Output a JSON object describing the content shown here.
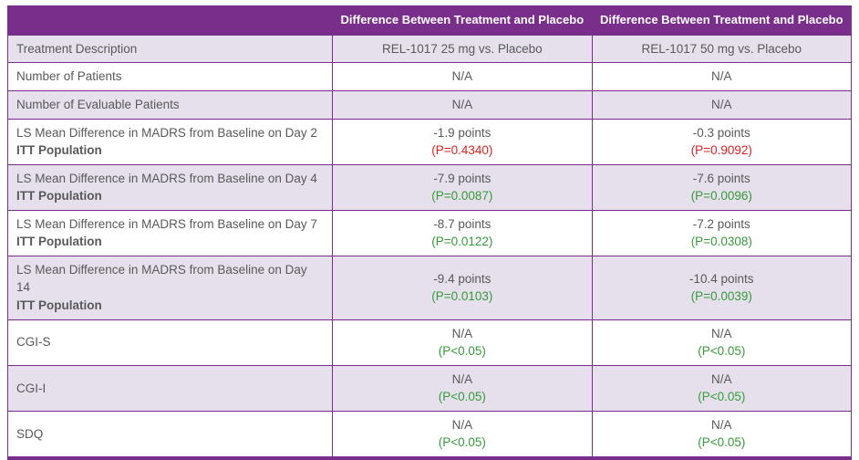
{
  "colors": {
    "purple": "#7a2e8c",
    "row_alt": "#e6e0ed",
    "text": "#595959",
    "red": "#e21f1f",
    "green": "#349c38",
    "white": "#ffffff"
  },
  "header": {
    "col1": "",
    "col2": "Difference Between Treatment and Placebo",
    "col3": "Difference Between Treatment and Placebo"
  },
  "rows": [
    {
      "label": "Treatment Description",
      "sublabel": "",
      "p_color": "",
      "col1": {
        "value": "REL-1017 25 mg vs. Placebo",
        "p": ""
      },
      "col2": {
        "value": "REL-1017 50 mg vs. Placebo",
        "p": ""
      }
    },
    {
      "label": "Number of Patients",
      "sublabel": "",
      "p_color": "",
      "col1": {
        "value": "N/A",
        "p": ""
      },
      "col2": {
        "value": "N/A",
        "p": ""
      }
    },
    {
      "label": "Number of Evaluable Patients",
      "sublabel": "",
      "p_color": "",
      "col1": {
        "value": "N/A",
        "p": ""
      },
      "col2": {
        "value": "N/A",
        "p": ""
      }
    },
    {
      "label": "LS Mean Difference in MADRS from Baseline on Day 2",
      "sublabel": "ITT Population",
      "p_color": "red",
      "col1": {
        "value": "-1.9 points",
        "p": "(P=0.4340)"
      },
      "col2": {
        "value": "-0.3 points",
        "p": "(P=0.9092)"
      }
    },
    {
      "label": "LS Mean Difference in MADRS from Baseline on Day 4",
      "sublabel": "ITT Population",
      "p_color": "green",
      "col1": {
        "value": "-7.9 points",
        "p": "(P=0.0087)"
      },
      "col2": {
        "value": "-7.6 points",
        "p": "(P=0.0096)"
      }
    },
    {
      "label": "LS Mean Difference in MADRS from Baseline on Day 7",
      "sublabel": "ITT Population",
      "p_color": "green",
      "col1": {
        "value": "-8.7 points",
        "p": "(P=0.0122)"
      },
      "col2": {
        "value": "-7.2 points",
        "p": "(P=0.0308)"
      }
    },
    {
      "label": "LS Mean Difference in MADRS from Baseline on Day 14",
      "sublabel": "ITT Population",
      "p_color": "green",
      "col1": {
        "value": "-9.4 points",
        "p": "(P=0.0103)"
      },
      "col2": {
        "value": "-10.4 points",
        "p": "(P=0.0039)"
      }
    },
    {
      "label": "CGI-S",
      "sublabel": "",
      "p_color": "green",
      "col1": {
        "value": "N/A",
        "p": "(P<0.05)"
      },
      "col2": {
        "value": "N/A",
        "p": "(P<0.05)"
      }
    },
    {
      "label": "CGI-I",
      "sublabel": "",
      "p_color": "green",
      "col1": {
        "value": "N/A",
        "p": "(P<0.05)"
      },
      "col2": {
        "value": "N/A",
        "p": "(P<0.05)"
      }
    },
    {
      "label": "SDQ",
      "sublabel": "",
      "p_color": "green",
      "col1": {
        "value": "N/A",
        "p": "(P<0.05)"
      },
      "col2": {
        "value": "N/A",
        "p": "(P<0.05)"
      }
    }
  ]
}
